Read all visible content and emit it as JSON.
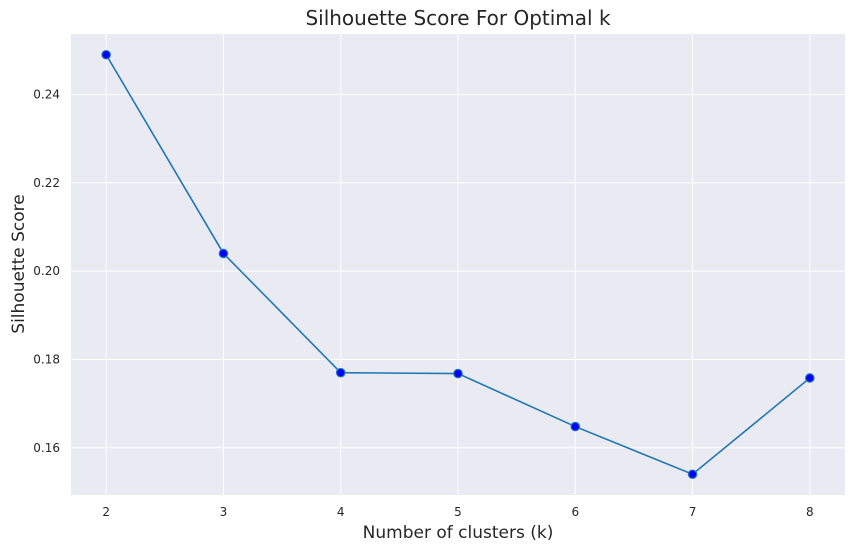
{
  "chart_data": {
    "type": "line",
    "title": "Silhouette Score For Optimal k",
    "xlabel": "Number of clusters (k)",
    "ylabel": "Silhouette Score",
    "x": [
      2,
      3,
      4,
      5,
      6,
      7,
      8
    ],
    "series": [
      {
        "values": [
          0.249,
          0.204,
          0.177,
          0.1768,
          0.1648,
          0.154,
          0.1758
        ]
      }
    ],
    "xticks": [
      "2",
      "3",
      "4",
      "5",
      "6",
      "7",
      "8"
    ],
    "yticks": [
      "0.16",
      "0.18",
      "0.20",
      "0.22",
      "0.24"
    ],
    "xlim": [
      1.7,
      8.3
    ],
    "ylim": [
      0.1493,
      0.2537
    ],
    "grid": true,
    "colors": {
      "background": "#eaeaf2",
      "grid": "#ffffff",
      "line": "#1f77b4",
      "marker": "#0000ff"
    }
  }
}
